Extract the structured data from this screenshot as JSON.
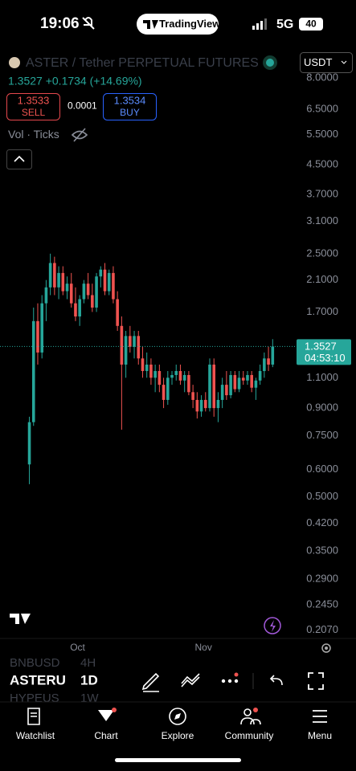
{
  "status_bar": {
    "time": "19:06",
    "app": "TradingView",
    "network": "5G",
    "battery": "40"
  },
  "header": {
    "currency": "USDT",
    "price": "1.3527",
    "change": "+0.1734",
    "change_pct": "(+14.69%)",
    "sell_price": "1.3533",
    "sell_label": "SELL",
    "spread": "0.0001",
    "buy_price": "1.3534",
    "buy_label": "BUY",
    "indicators": "Vol · Ticks"
  },
  "chart_data": {
    "type": "candlestick",
    "title": "ASTER / Tether PERPETUAL FUTURES",
    "open": [
      0.62,
      0.82,
      1.6,
      1.3,
      1.8,
      2.0,
      2.35,
      2.0,
      2.2,
      1.95,
      2.05,
      1.8,
      1.65,
      1.85,
      2.05,
      1.9,
      1.75,
      2.15,
      2.25,
      1.95,
      2.2,
      1.85,
      1.55,
      1.2,
      1.45,
      1.35,
      1.45,
      1.25,
      1.15,
      1.2,
      1.1,
      1.15,
      1.05,
      0.95,
      1.1,
      1.12,
      1.15,
      1.08,
      1.12,
      1.0,
      0.95,
      0.88,
      0.95,
      0.9,
      1.2,
      0.9,
      0.95,
      1.05,
      0.98,
      1.12,
      1.02,
      1.1,
      1.08,
      1.12,
      1.03,
      1.08,
      1.15,
      1.25,
      1.2
    ],
    "high": [
      0.85,
      1.75,
      1.8,
      1.9,
      2.1,
      2.5,
      2.45,
      2.3,
      2.3,
      2.15,
      2.2,
      2.0,
      1.9,
      2.1,
      2.2,
      2.05,
      2.2,
      2.3,
      2.35,
      2.25,
      2.3,
      1.95,
      1.65,
      1.5,
      1.55,
      1.5,
      1.5,
      1.35,
      1.3,
      1.25,
      1.2,
      1.2,
      1.1,
      1.15,
      1.15,
      1.2,
      1.2,
      1.15,
      1.15,
      1.05,
      1.0,
      0.98,
      1.0,
      1.25,
      1.25,
      1.0,
      1.1,
      1.15,
      1.15,
      1.15,
      1.15,
      1.15,
      1.15,
      1.15,
      1.1,
      1.2,
      1.3,
      1.35,
      1.42
    ],
    "low": [
      0.544,
      0.8,
      1.2,
      1.25,
      1.6,
      1.9,
      1.9,
      1.85,
      1.9,
      1.85,
      1.75,
      1.6,
      1.55,
      1.8,
      1.85,
      1.7,
      1.7,
      2.0,
      1.9,
      1.9,
      1.8,
      1.5,
      0.78,
      1.1,
      1.3,
      1.25,
      1.2,
      1.1,
      1.1,
      1.05,
      1.0,
      1.0,
      0.9,
      0.92,
      1.05,
      1.08,
      1.05,
      1.0,
      0.98,
      0.9,
      0.84,
      0.85,
      0.88,
      0.88,
      0.85,
      0.82,
      0.9,
      0.95,
      0.96,
      1.0,
      1.0,
      1.05,
      1.05,
      1.0,
      0.95,
      1.05,
      1.1,
      1.15,
      1.18
    ],
    "close": [
      0.82,
      1.6,
      1.3,
      1.8,
      2.0,
      2.35,
      2.0,
      2.2,
      1.95,
      2.05,
      1.8,
      1.65,
      1.85,
      2.05,
      1.9,
      1.75,
      2.15,
      2.25,
      1.95,
      2.2,
      1.85,
      1.55,
      1.2,
      1.45,
      1.35,
      1.45,
      1.25,
      1.15,
      1.2,
      1.1,
      1.15,
      1.05,
      0.95,
      1.1,
      1.12,
      1.15,
      1.08,
      1.12,
      1.0,
      0.95,
      0.88,
      0.95,
      0.9,
      1.2,
      0.9,
      0.95,
      1.05,
      0.98,
      1.12,
      1.02,
      1.1,
      1.08,
      1.12,
      1.03,
      1.08,
      1.15,
      1.25,
      1.2,
      1.3527
    ],
    "up_color": "#26a69a",
    "down_color": "#ef5350",
    "log_scale": true,
    "ylim": [
      0.196,
      8.3
    ],
    "yticks": [
      {
        "value": 8,
        "label": "8.0000"
      },
      {
        "value": 6.5,
        "label": "6.5000"
      },
      {
        "value": 5.5,
        "label": "5.5000"
      },
      {
        "value": 4.5,
        "label": "4.5000"
      },
      {
        "value": 3.7,
        "label": "3.7000"
      },
      {
        "value": 3.1,
        "label": "3.1000"
      },
      {
        "value": 2.5,
        "label": "2.5000"
      },
      {
        "value": 2.1,
        "label": "2.1000"
      },
      {
        "value": 1.7,
        "label": "1.7000"
      },
      {
        "value": 1.1,
        "label": "1.1000"
      },
      {
        "value": 0.9,
        "label": "0.9000"
      },
      {
        "value": 0.75,
        "label": "0.7500"
      },
      {
        "value": 0.6,
        "label": "0.6000"
      },
      {
        "value": 0.5,
        "label": "0.5000"
      },
      {
        "value": 0.42,
        "label": "0.4200"
      },
      {
        "value": 0.35,
        "label": "0.3500"
      },
      {
        "value": 0.29,
        "label": "0.2900"
      },
      {
        "value": 0.245,
        "label": "0.2450"
      },
      {
        "value": 0.207,
        "label": "0.2070"
      }
    ],
    "xlim": [
      -7,
      63.5
    ],
    "xticks": [
      {
        "value": 11.5,
        "label": "Oct"
      },
      {
        "value": 41.5,
        "label": "Nov"
      }
    ],
    "last_price": 1.3527,
    "countdown": "04:53:10"
  },
  "watchlist": [
    [
      "BNBUSD",
      "4H"
    ],
    [
      "ASTERU",
      "1D"
    ],
    [
      "HYPEUS",
      "1W"
    ]
  ],
  "nav": [
    "Watchlist",
    "Chart",
    "Explore",
    "Community",
    "Menu"
  ]
}
